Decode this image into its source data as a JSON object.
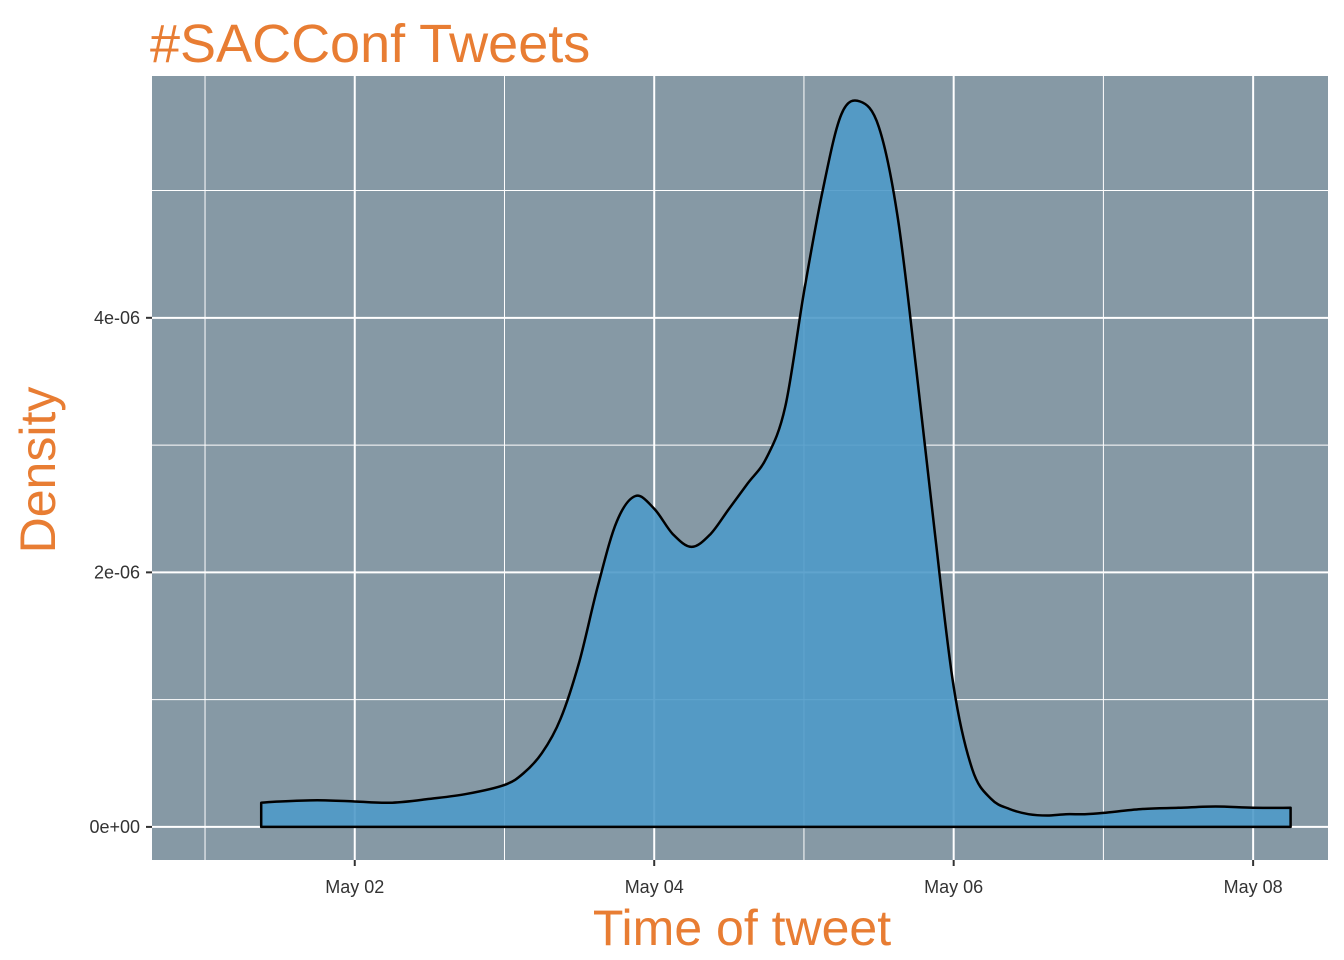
{
  "chart_data": {
    "type": "area",
    "title": "#SACConf Tweets",
    "xlabel": "Time of tweet",
    "ylabel": "Density",
    "x_tick_labels": [
      "May 02",
      "May 04",
      "May 06",
      "May 08"
    ],
    "x_tick_dates": [
      "2018-05-02",
      "2018-05-04",
      "2018-05-06",
      "2018-05-08"
    ],
    "y_tick_labels": [
      "0e+00",
      "2e-06",
      "4e-06"
    ],
    "y_tick_values": [
      0,
      2e-06,
      4e-06
    ],
    "xlim": [
      "2018-04-30 15:30",
      "2018-05-08 12:00"
    ],
    "ylim": [
      -2.6e-07,
      5.9e-06
    ],
    "grid": true,
    "series": [
      {
        "x": [
          "2018-05-01 09:00",
          "2018-05-01 12:00",
          "2018-05-01 18:00",
          "2018-05-02 00:00",
          "2018-05-02 06:00",
          "2018-05-02 12:00",
          "2018-05-02 18:00",
          "2018-05-03 00:00",
          "2018-05-03 03:00",
          "2018-05-03 06:00",
          "2018-05-03 09:00",
          "2018-05-03 12:00",
          "2018-05-03 15:00",
          "2018-05-03 18:00",
          "2018-05-03 21:00",
          "2018-05-04 00:00",
          "2018-05-04 03:00",
          "2018-05-04 06:00",
          "2018-05-04 09:00",
          "2018-05-04 12:00",
          "2018-05-04 15:00",
          "2018-05-04 18:00",
          "2018-05-04 21:00",
          "2018-05-05 00:00",
          "2018-05-05 03:00",
          "2018-05-05 06:00",
          "2018-05-05 09:00",
          "2018-05-05 12:00",
          "2018-05-05 15:00",
          "2018-05-05 18:00",
          "2018-05-05 21:00",
          "2018-05-06 00:00",
          "2018-05-06 03:00",
          "2018-05-06 06:00",
          "2018-05-06 09:00",
          "2018-05-06 12:00",
          "2018-05-06 15:00",
          "2018-05-06 18:00",
          "2018-05-06 21:00",
          "2018-05-07 00:00",
          "2018-05-07 06:00",
          "2018-05-07 12:00",
          "2018-05-07 18:00",
          "2018-05-08 00:00",
          "2018-05-08 06:00"
        ],
        "y": [
          1.9e-07,
          2e-07,
          2.1e-07,
          2e-07,
          1.9e-07,
          2.2e-07,
          2.6e-07,
          3.3e-07,
          4.2e-07,
          5.8e-07,
          8.5e-07,
          1.3e-06,
          1.9e-06,
          2.4e-06,
          2.6e-06,
          2.5e-06,
          2.3e-06,
          2.2e-06,
          2.3e-06,
          2.5e-06,
          2.7e-06,
          2.9e-06,
          3.3e-06,
          4.2e-06,
          5e-06,
          5.6e-06,
          5.7e-06,
          5.5e-06,
          4.8e-06,
          3.6e-06,
          2.3e-06,
          1.1e-06,
          4.5e-07,
          2.2e-07,
          1.4e-07,
          1e-07,
          9e-08,
          1e-07,
          1e-07,
          1.1e-07,
          1.4e-07,
          1.5e-07,
          1.6e-07,
          1.5e-07,
          1.5e-07
        ]
      }
    ]
  },
  "colors": {
    "title": "#E87D33",
    "panel_background": "#8699A5",
    "fill": "#4F9AC9",
    "outline": "#000000",
    "grid": "#FFFFFF"
  }
}
